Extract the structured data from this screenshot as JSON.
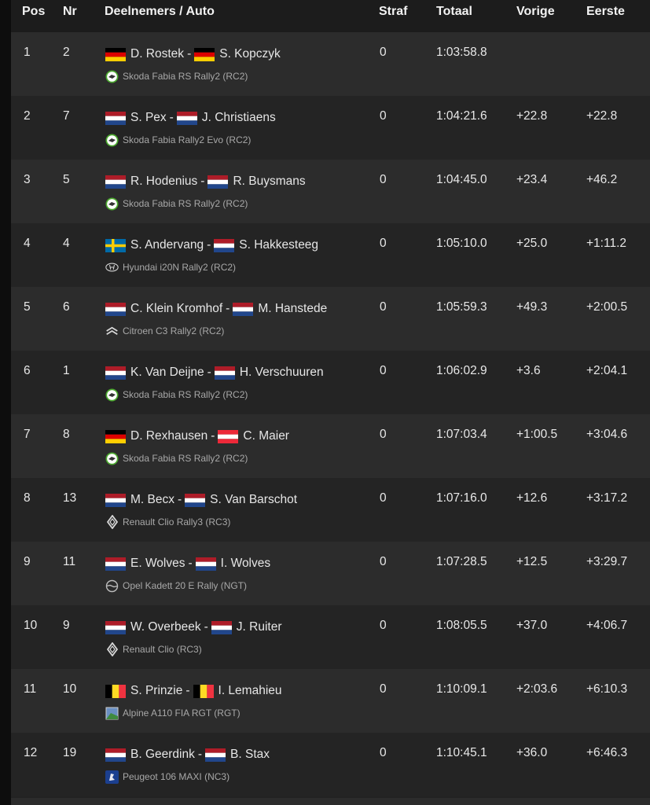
{
  "header": {
    "pos": "Pos",
    "nr": "Nr",
    "participants": "Deelnemers / Auto",
    "penalty": "Straf",
    "total": "Totaal",
    "previous": "Vorige",
    "first": "Eerste"
  },
  "colors": {
    "background": "#222222",
    "row_odd": "#2c2c2c",
    "row_even": "#242424",
    "text": "#e8e8e8",
    "car_text": "#a8a8a8"
  },
  "rows": [
    {
      "pos": "1",
      "nr": "2",
      "driver": "D. Rostek",
      "driver_flag": "de",
      "codriver": "S. Kopczyk",
      "codriver_flag": "de",
      "car": "Skoda Fabia RS Rally2 (RC2)",
      "brand": "skoda-icon",
      "penalty": "0",
      "total": "1:03:58.8",
      "previous": "",
      "first": ""
    },
    {
      "pos": "2",
      "nr": "7",
      "driver": "S. Pex",
      "driver_flag": "nl",
      "codriver": "J. Christiaens",
      "codriver_flag": "nl",
      "car": "Skoda Fabia Rally2 Evo (RC2)",
      "brand": "skoda-icon",
      "penalty": "0",
      "total": "1:04:21.6",
      "previous": "+22.8",
      "first": "+22.8"
    },
    {
      "pos": "3",
      "nr": "5",
      "driver": "R. Hodenius",
      "driver_flag": "nl",
      "codriver": "R. Buysmans",
      "codriver_flag": "nl",
      "car": "Skoda Fabia RS Rally2 (RC2)",
      "brand": "skoda-icon",
      "penalty": "0",
      "total": "1:04:45.0",
      "previous": "+23.4",
      "first": "+46.2"
    },
    {
      "pos": "4",
      "nr": "4",
      "driver": "S. Andervang",
      "driver_flag": "se",
      "codriver": "S. Hakkesteeg",
      "codriver_flag": "nl",
      "car": "Hyundai i20N Rally2 (RC2)",
      "brand": "hyundai-icon",
      "penalty": "0",
      "total": "1:05:10.0",
      "previous": "+25.0",
      "first": "+1:11.2"
    },
    {
      "pos": "5",
      "nr": "6",
      "driver": "C. Klein Kromhof",
      "driver_flag": "nl",
      "codriver": "M. Hanstede",
      "codriver_flag": "nl",
      "car": "Citroen C3 Rally2 (RC2)",
      "brand": "citroen-icon",
      "penalty": "0",
      "total": "1:05:59.3",
      "previous": "+49.3",
      "first": "+2:00.5"
    },
    {
      "pos": "6",
      "nr": "1",
      "driver": "K. Van Deijne",
      "driver_flag": "nl",
      "codriver": "H. Verschuuren",
      "codriver_flag": "nl",
      "car": "Skoda Fabia RS Rally2 (RC2)",
      "brand": "skoda-icon",
      "penalty": "0",
      "total": "1:06:02.9",
      "previous": "+3.6",
      "first": "+2:04.1"
    },
    {
      "pos": "7",
      "nr": "8",
      "driver": "D. Rexhausen",
      "driver_flag": "de",
      "codriver": "C. Maier",
      "codriver_flag": "at",
      "car": "Skoda Fabia RS Rally2 (RC2)",
      "brand": "skoda-icon",
      "penalty": "0",
      "total": "1:07:03.4",
      "previous": "+1:00.5",
      "first": "+3:04.6"
    },
    {
      "pos": "8",
      "nr": "13",
      "driver": "M. Becx",
      "driver_flag": "nl",
      "codriver": "S. Van Barschot",
      "codriver_flag": "nl",
      "car": "Renault Clio Rally3 (RC3)",
      "brand": "renault-icon",
      "penalty": "0",
      "total": "1:07:16.0",
      "previous": "+12.6",
      "first": "+3:17.2"
    },
    {
      "pos": "9",
      "nr": "11",
      "driver": "E. Wolves",
      "driver_flag": "nl",
      "codriver": "I. Wolves",
      "codriver_flag": "nl",
      "car": "Opel Kadett 20 E Rally (NGT)",
      "brand": "opel-icon",
      "penalty": "0",
      "total": "1:07:28.5",
      "previous": "+12.5",
      "first": "+3:29.7"
    },
    {
      "pos": "10",
      "nr": "9",
      "driver": "W. Overbeek",
      "driver_flag": "nl",
      "codriver": "J. Ruiter",
      "codriver_flag": "nl",
      "car": "Renault Clio (RC3)",
      "brand": "renault-icon",
      "penalty": "0",
      "total": "1:08:05.5",
      "previous": "+37.0",
      "first": "+4:06.7"
    },
    {
      "pos": "11",
      "nr": "10",
      "driver": "S. Prinzie",
      "driver_flag": "be",
      "codriver": "I. Lemahieu",
      "codriver_flag": "be",
      "car": "Alpine A110 FIA RGT (RGT)",
      "brand": "broken-image-icon",
      "penalty": "0",
      "total": "1:10:09.1",
      "previous": "+2:03.6",
      "first": "+6:10.3"
    },
    {
      "pos": "12",
      "nr": "19",
      "driver": "B. Geerdink",
      "driver_flag": "nl",
      "codriver": "B. Stax",
      "codriver_flag": "nl",
      "car": "Peugeot 106 MAXI (NC3)",
      "brand": "peugeot-icon",
      "penalty": "0",
      "total": "1:10:45.1",
      "previous": "+36.0",
      "first": "+6:46.3"
    }
  ]
}
